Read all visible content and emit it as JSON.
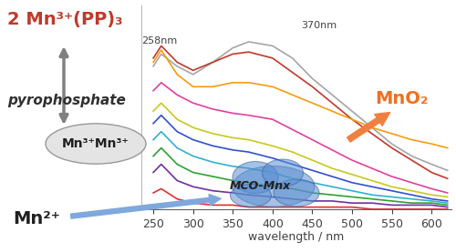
{
  "chart_data": {
    "type": "line",
    "x_label": "wavelength / nm",
    "x": [
      250,
      260,
      280,
      300,
      325,
      350,
      370,
      400,
      425,
      450,
      475,
      500,
      525,
      550,
      575,
      600,
      620
    ],
    "series": [
      {
        "color": "#a6a6a6",
        "values": [
          70,
          76,
          70,
          66,
          72,
          79,
          82,
          80,
          74,
          64,
          56,
          48,
          40,
          32,
          26,
          22,
          19
        ]
      },
      {
        "color": "#c0392b",
        "values": [
          74,
          80,
          72,
          68,
          72,
          76,
          77,
          74,
          67,
          60,
          52,
          44,
          37,
          30,
          24,
          18,
          15
        ]
      },
      {
        "color": "#f39c12",
        "values": [
          72,
          78,
          66,
          60,
          60,
          62,
          62,
          60,
          56,
          52,
          48,
          44,
          40,
          37,
          34,
          32,
          30
        ]
      },
      {
        "color": "#e040a0",
        "values": [
          58,
          62,
          56,
          52,
          49,
          47,
          46,
          44,
          39,
          34,
          29,
          24,
          20,
          16,
          13,
          10,
          8
        ]
      },
      {
        "color": "#c8c820",
        "values": [
          48,
          52,
          44,
          40,
          37,
          35,
          34,
          31,
          28,
          24,
          20,
          17,
          14,
          11,
          9,
          7,
          6
        ]
      },
      {
        "color": "#3050d0",
        "values": [
          42,
          46,
          38,
          34,
          31,
          29,
          28,
          25,
          22,
          19,
          16,
          13,
          11,
          9,
          7,
          5,
          4
        ]
      },
      {
        "color": "#30b0d0",
        "values": [
          34,
          38,
          30,
          26,
          23,
          21,
          20,
          18,
          15,
          13,
          11,
          9,
          7,
          6,
          5,
          4,
          3
        ]
      },
      {
        "color": "#30a030",
        "values": [
          26,
          30,
          22,
          18,
          16,
          14,
          13,
          11,
          10,
          8,
          7,
          6,
          5,
          4,
          3,
          3,
          2
        ]
      },
      {
        "color": "#7030a0",
        "values": [
          18,
          22,
          14,
          11,
          9,
          8,
          7,
          6,
          5,
          4,
          4,
          3,
          3,
          2,
          2,
          2,
          1
        ]
      },
      {
        "color": "#e03030",
        "values": [
          8,
          10,
          5,
          3,
          2,
          2,
          1,
          1,
          1,
          1,
          1,
          1,
          0,
          0,
          0,
          0,
          0
        ]
      }
    ],
    "xlim": [
      235,
      625
    ],
    "xticks": [
      250,
      300,
      350,
      400,
      450,
      500,
      550,
      600
    ],
    "ylim": [
      0,
      100
    ],
    "yticks": [],
    "tick_labels": "x",
    "annotations": [
      {
        "text": "2 Mn³⁺(PP)₃",
        "color": "#c0392b"
      },
      {
        "text": "258nm",
        "color": "#404040"
      },
      {
        "text": "370nm",
        "color": "#404040"
      },
      {
        "text": "pyrophosphate",
        "color": "#303030"
      },
      {
        "text": "Mn³⁺Mn³⁺",
        "color": "#202020"
      },
      {
        "text": "MnO₂",
        "color": "#f07020"
      },
      {
        "text": "Mn²⁺",
        "color": "#202020"
      },
      {
        "text": "MCO-Mnx",
        "color": "#202020"
      }
    ]
  }
}
